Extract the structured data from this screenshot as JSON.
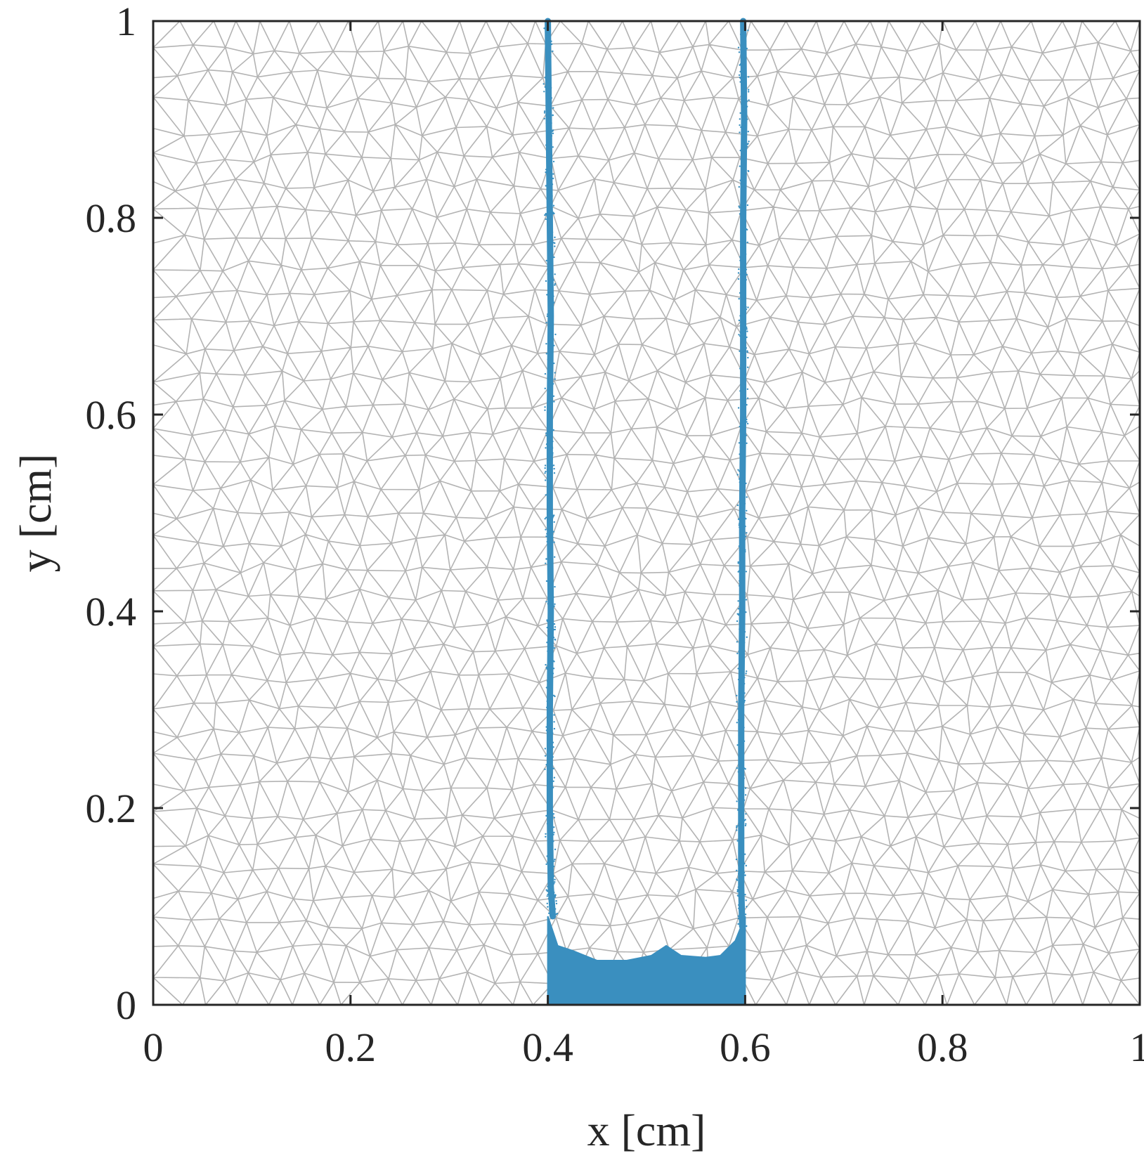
{
  "chart_data": {
    "type": "scatter",
    "title": "",
    "xlabel": "x [cm]",
    "ylabel": "y [cm]",
    "xlim": [
      0,
      1
    ],
    "ylim": [
      0,
      1
    ],
    "x_ticks": [
      {
        "value": 0,
        "label": "0"
      },
      {
        "value": 0.2,
        "label": "0.2"
      },
      {
        "value": 0.4,
        "label": "0.4"
      },
      {
        "value": 0.6,
        "label": "0.6"
      },
      {
        "value": 0.8,
        "label": "0.8"
      },
      {
        "value": 1,
        "label": "1"
      }
    ],
    "y_ticks": [
      {
        "value": 0,
        "label": "0"
      },
      {
        "value": 0.2,
        "label": "0.2"
      },
      {
        "value": 0.4,
        "label": "0.4"
      },
      {
        "value": 0.6,
        "label": "0.6"
      },
      {
        "value": 0.8,
        "label": "0.8"
      },
      {
        "value": 1,
        "label": "1"
      }
    ],
    "grid": false,
    "background_mesh": "triangular",
    "mesh_color": "#b3b3b3",
    "particle_color": "#3a8fbf",
    "series": [
      {
        "kind": "wall",
        "points": [
          [
            0.4,
            1.0
          ],
          [
            0.401,
            0.9
          ],
          [
            0.402,
            0.8
          ],
          [
            0.403,
            0.7
          ],
          [
            0.402,
            0.6
          ],
          [
            0.402,
            0.5
          ],
          [
            0.403,
            0.4
          ],
          [
            0.402,
            0.3
          ],
          [
            0.402,
            0.2
          ],
          [
            0.403,
            0.12
          ],
          [
            0.405,
            0.09
          ]
        ]
      },
      {
        "kind": "wall",
        "points": [
          [
            0.598,
            1.0
          ],
          [
            0.599,
            0.9
          ],
          [
            0.598,
            0.8
          ],
          [
            0.598,
            0.7
          ],
          [
            0.598,
            0.6
          ],
          [
            0.597,
            0.5
          ],
          [
            0.597,
            0.4
          ],
          [
            0.596,
            0.3
          ],
          [
            0.596,
            0.2
          ],
          [
            0.596,
            0.12
          ],
          [
            0.597,
            0.08
          ]
        ]
      },
      {
        "kind": "settled-layer",
        "boundary": [
          [
            0.4,
            0.0
          ],
          [
            0.4,
            0.09
          ],
          [
            0.41,
            0.06
          ],
          [
            0.425,
            0.055
          ],
          [
            0.45,
            0.045
          ],
          [
            0.48,
            0.045
          ],
          [
            0.505,
            0.05
          ],
          [
            0.52,
            0.06
          ],
          [
            0.535,
            0.05
          ],
          [
            0.56,
            0.048
          ],
          [
            0.575,
            0.05
          ],
          [
            0.59,
            0.065
          ],
          [
            0.6,
            0.09
          ],
          [
            0.6,
            0.0
          ]
        ]
      }
    ]
  }
}
